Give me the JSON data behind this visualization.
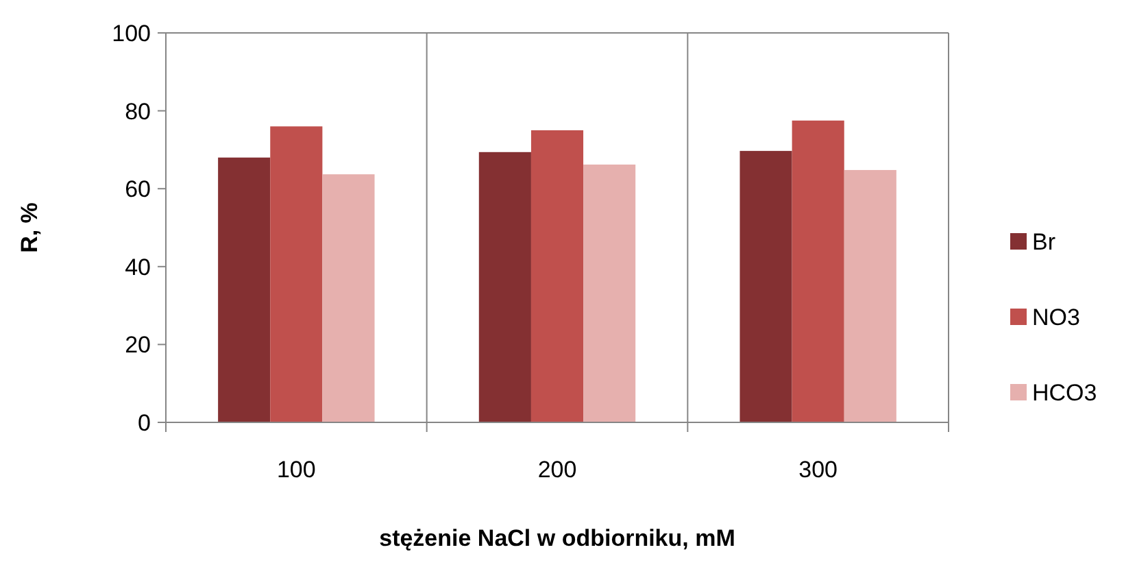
{
  "chart_data": {
    "type": "bar",
    "xlabel": "stężenie NaCl w odbiorniku, mM",
    "ylabel": "R, %",
    "categories": [
      "100",
      "200",
      "300"
    ],
    "series": [
      {
        "name": "Br",
        "color": "#843032",
        "values": [
          68,
          69.4,
          69.7
        ]
      },
      {
        "name": "NO3",
        "color": "#c0504d",
        "values": [
          76,
          75,
          77.5
        ]
      },
      {
        "name": "HCO3",
        "color": "#e6b0ae",
        "values": [
          63.7,
          66.2,
          64.8
        ]
      }
    ],
    "ylim": [
      0,
      100
    ],
    "yticks": [
      0,
      20,
      40,
      60,
      80,
      100
    ],
    "grid": "x",
    "legend": "right"
  }
}
